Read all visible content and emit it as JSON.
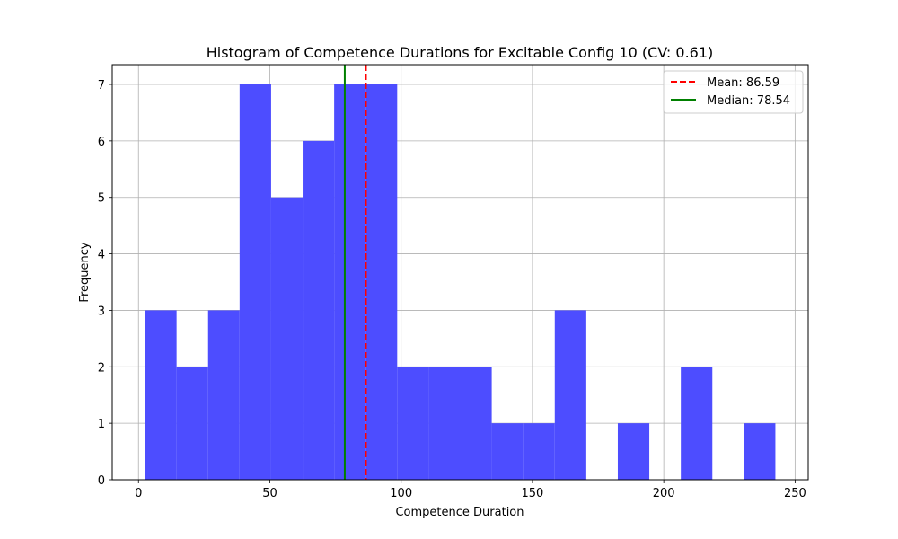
{
  "chart_data": {
    "type": "bar",
    "subtype": "histogram",
    "title": "Histogram of Competence Durations for Excitable Config 10 (CV: 0.61)",
    "xlabel": "Competence Duration",
    "ylabel": "Frequency",
    "xlim": [
      -10,
      255
    ],
    "ylim": [
      0,
      7.35
    ],
    "xticks": [
      0,
      50,
      100,
      150,
      200,
      250
    ],
    "yticks": [
      0,
      1,
      2,
      3,
      4,
      5,
      6,
      7
    ],
    "grid": true,
    "legend_position": "top-right",
    "bins": [
      {
        "start": 2.5,
        "end": 14.5,
        "count": 3
      },
      {
        "start": 14.5,
        "end": 26.5,
        "count": 2
      },
      {
        "start": 26.5,
        "end": 38.5,
        "count": 3
      },
      {
        "start": 38.5,
        "end": 50.5,
        "count": 7
      },
      {
        "start": 50.5,
        "end": 62.5,
        "count": 5
      },
      {
        "start": 62.5,
        "end": 74.5,
        "count": 6
      },
      {
        "start": 74.5,
        "end": 86.5,
        "count": 7
      },
      {
        "start": 86.5,
        "end": 98.5,
        "count": 7
      },
      {
        "start": 98.5,
        "end": 110.5,
        "count": 2
      },
      {
        "start": 110.5,
        "end": 122.5,
        "count": 2
      },
      {
        "start": 122.5,
        "end": 134.5,
        "count": 2
      },
      {
        "start": 134.5,
        "end": 146.5,
        "count": 1
      },
      {
        "start": 146.5,
        "end": 158.5,
        "count": 1
      },
      {
        "start": 158.5,
        "end": 170.5,
        "count": 3
      },
      {
        "start": 170.5,
        "end": 182.5,
        "count": 0
      },
      {
        "start": 182.5,
        "end": 194.5,
        "count": 1
      },
      {
        "start": 194.5,
        "end": 206.5,
        "count": 0
      },
      {
        "start": 206.5,
        "end": 218.5,
        "count": 2
      },
      {
        "start": 218.5,
        "end": 230.5,
        "count": 0
      },
      {
        "start": 230.5,
        "end": 242.5,
        "count": 1
      }
    ],
    "bar_color": "#4d4dff",
    "lines": [
      {
        "label": "Mean: 86.59",
        "x": 86.59,
        "color": "#ff0000",
        "style": "dashed"
      },
      {
        "label": "Median: 78.54",
        "x": 78.54,
        "color": "#008000",
        "style": "solid"
      }
    ]
  }
}
